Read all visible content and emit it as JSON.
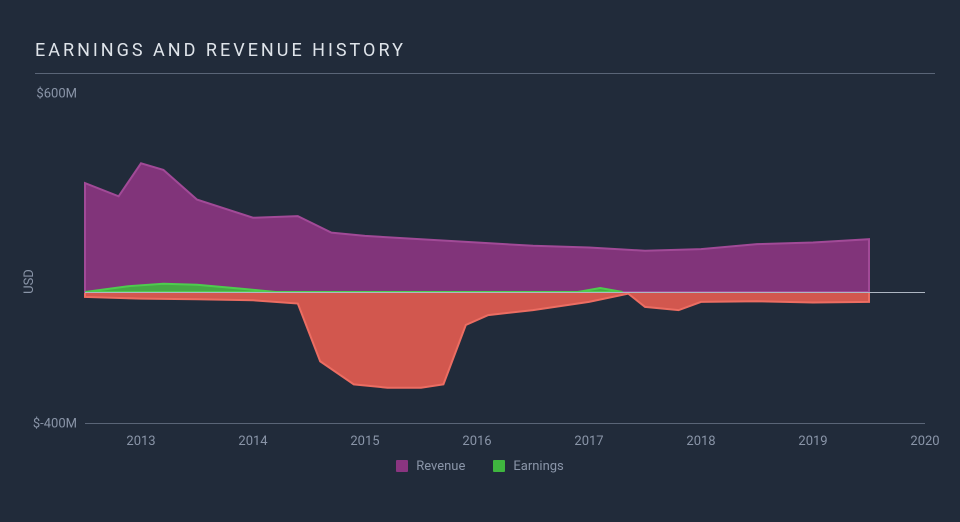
{
  "title": "EARNINGS AND REVENUE HISTORY",
  "type": "area",
  "ylabel": "USD",
  "background_color": "#212b3a",
  "title_color": "#dfe4ea",
  "axis_label_color": "#8a95a8",
  "axis_line_color": "#5a6577",
  "baseline_color": "#aeb6c2",
  "title_fontsize": 18,
  "title_letterspacing": 3,
  "tick_fontsize": 13,
  "xlim": [
    2012.5,
    2020
  ],
  "ylim": [
    -400,
    600
  ],
  "ytick_values": [
    -400,
    600
  ],
  "ytick_labels": [
    "$-400M",
    "$600M"
  ],
  "xtick_values": [
    2013,
    2014,
    2015,
    2016,
    2017,
    2018,
    2019,
    2020
  ],
  "xtick_labels": [
    "2013",
    "2014",
    "2015",
    "2016",
    "2017",
    "2018",
    "2019",
    "2020"
  ],
  "series": {
    "revenue": {
      "label": "Revenue",
      "color": "#8a3580",
      "stroke": "#a14a97",
      "opacity": 0.92,
      "x": [
        2012.5,
        2012.8,
        2013.0,
        2013.2,
        2013.5,
        2014.0,
        2014.4,
        2014.7,
        2015.0,
        2015.5,
        2016.0,
        2016.5,
        2017.0,
        2017.5,
        2018.0,
        2018.5,
        2019.0,
        2019.5
      ],
      "y": [
        330,
        290,
        390,
        370,
        280,
        225,
        230,
        180,
        170,
        160,
        150,
        140,
        135,
        125,
        130,
        145,
        150,
        160
      ]
    },
    "earnings_pos": {
      "label": "Earnings",
      "color": "#3fb63f",
      "stroke": "#4ecc4e",
      "opacity": 0.9,
      "x": [
        2012.5,
        2012.9,
        2013.2,
        2013.5,
        2013.9,
        2014.2,
        2016.9,
        2017.1,
        2017.3
      ],
      "y": [
        0,
        18,
        25,
        22,
        10,
        0,
        0,
        12,
        0
      ]
    },
    "earnings_neg": {
      "color": "#e25b50",
      "stroke": "#ec6d62",
      "opacity": 0.92,
      "x": [
        2012.5,
        2013.0,
        2013.5,
        2014.0,
        2014.4,
        2014.6,
        2014.9,
        2015.2,
        2015.5,
        2015.7,
        2015.9,
        2016.1,
        2016.5,
        2017.0,
        2017.35,
        2017.5,
        2017.8,
        2018.0,
        2018.5,
        2019.0,
        2019.5
      ],
      "y": [
        -15,
        -20,
        -22,
        -25,
        -35,
        -210,
        -280,
        -290,
        -290,
        -280,
        -100,
        -70,
        -55,
        -30,
        -5,
        -45,
        -55,
        -30,
        -28,
        -32,
        -30
      ]
    }
  },
  "legend": [
    {
      "key": "revenue",
      "label": "Revenue",
      "color": "#8a3580"
    },
    {
      "key": "earnings",
      "label": "Earnings",
      "color": "#3fb63f"
    }
  ]
}
